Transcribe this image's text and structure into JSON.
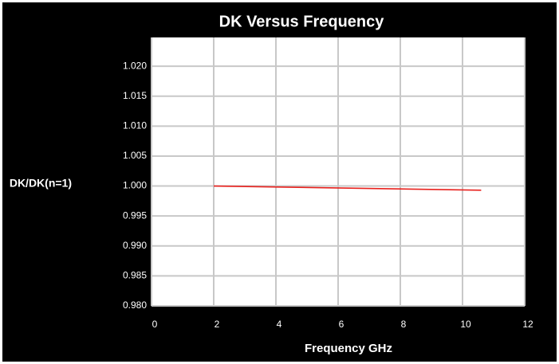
{
  "chart_data": {
    "type": "line",
    "title": "DK Versus Frequency",
    "x_label": "Frequency GHz",
    "y_label": "DK/DK(n=1)",
    "x": [
      2,
      10.6
    ],
    "values": [
      1.0,
      0.9993
    ],
    "color": "#e8211d",
    "xlim": [
      0,
      12
    ],
    "xticks": [
      0,
      2,
      4,
      6,
      8,
      10,
      12
    ],
    "ylim": [
      0.98,
      1.0248
    ],
    "yticks": [
      {
        "value": 0.98,
        "label": "0.980"
      },
      {
        "value": 0.985,
        "label": "0.985"
      },
      {
        "value": 0.99,
        "label": "0.990"
      },
      {
        "value": 0.995,
        "label": "0.995"
      },
      {
        "value": 1.0,
        "label": "1.000"
      },
      {
        "value": 1.005,
        "label": "1.005"
      },
      {
        "value": 1.01,
        "label": "1.010"
      },
      {
        "value": 1.015,
        "label": "1.015"
      },
      {
        "value": 1.02,
        "label": "1.020"
      }
    ],
    "grid": true
  }
}
